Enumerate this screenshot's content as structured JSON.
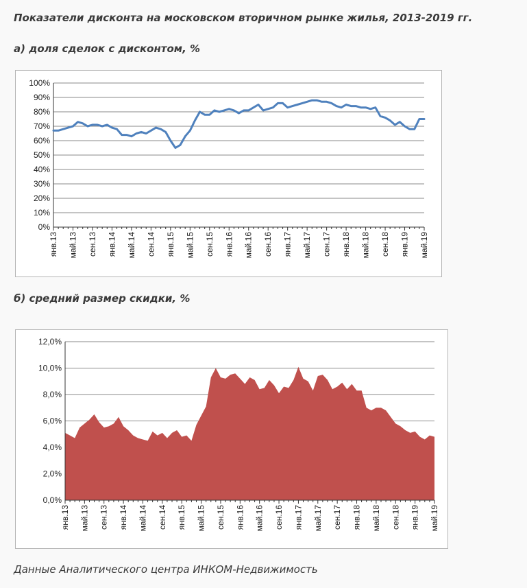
{
  "page": {
    "title": "Показатели дисконта на московском вторичном рынке жилья, 2013-2019 гг.",
    "source": "Данные Аналитического центра ИНКОМ-Недвижимость"
  },
  "chart_data": [
    {
      "type": "line",
      "title": "а) доля сделок с дисконтом, %",
      "xlabel": "",
      "ylabel": "",
      "ylim": [
        0,
        100
      ],
      "y_ticks": [
        "0%",
        "10%",
        "20%",
        "30%",
        "40%",
        "50%",
        "60%",
        "70%",
        "80%",
        "90%",
        "100%"
      ],
      "x_tick_labels": [
        "янв.13",
        "май.13",
        "сен.13",
        "янв.14",
        "май.14",
        "сен.14",
        "янв.15",
        "май.15",
        "сен.15",
        "янв.16",
        "май.16",
        "сен.16",
        "янв.17",
        "май.17",
        "сен.17",
        "янв.18",
        "май.18",
        "сен.18",
        "янв.19",
        "май.19"
      ],
      "grid": "horizontal",
      "legend": "none",
      "color": "#4f81bd",
      "series": [
        {
          "values": [
            67,
            67,
            68,
            69,
            70,
            73,
            72,
            70,
            71,
            71,
            70,
            71,
            69,
            68,
            64,
            64,
            63,
            65,
            66,
            65,
            67,
            69,
            68,
            66,
            60,
            55,
            57,
            63,
            67,
            74,
            80,
            78,
            78,
            81,
            80,
            81,
            82,
            81,
            79,
            81,
            81,
            83,
            85,
            81,
            82,
            83,
            86,
            86,
            83,
            84,
            85,
            86,
            87,
            88,
            88,
            87,
            87,
            86,
            84,
            83,
            85,
            84,
            84,
            83,
            83,
            82,
            83,
            77,
            76,
            74,
            71,
            73,
            70,
            68,
            68,
            75,
            75
          ]
        }
      ]
    },
    {
      "type": "area",
      "title": "б) средний размер скидки, %",
      "xlabel": "",
      "ylabel": "",
      "ylim": [
        0,
        12
      ],
      "y_ticks": [
        "0,0%",
        "2,0%",
        "4,0%",
        "6,0%",
        "8,0%",
        "10,0%",
        "12,0%"
      ],
      "x_tick_labels": [
        "янв.13",
        "май.13",
        "сен.13",
        "янв.14",
        "май.14",
        "сен.14",
        "янв.15",
        "май.15",
        "сен.15",
        "янв.16",
        "май.16",
        "сен.16",
        "янв.17",
        "май.17",
        "сен.17",
        "янв.18",
        "май.18",
        "сен.18",
        "янв.19",
        "май.19"
      ],
      "grid": "horizontal",
      "legend": "none",
      "color": "#c0504d",
      "series": [
        {
          "values": [
            5.1,
            4.9,
            4.7,
            5.5,
            5.8,
            6.1,
            6.5,
            5.9,
            5.5,
            5.6,
            5.8,
            6.3,
            5.6,
            5.3,
            4.9,
            4.7,
            4.6,
            4.5,
            5.2,
            4.9,
            5.1,
            4.7,
            5.1,
            5.3,
            4.8,
            4.9,
            4.5,
            5.7,
            6.4,
            7.1,
            9.3,
            10.0,
            9.3,
            9.2,
            9.5,
            9.6,
            9.2,
            8.8,
            9.3,
            9.1,
            8.4,
            8.5,
            9.1,
            8.7,
            8.1,
            8.6,
            8.5,
            9.1,
            10.1,
            9.2,
            9.0,
            8.3,
            9.4,
            9.5,
            9.1,
            8.4,
            8.6,
            8.9,
            8.4,
            8.8,
            8.3,
            8.3,
            7.0,
            6.8,
            7.0,
            7.0,
            6.8,
            6.3,
            5.8,
            5.6,
            5.3,
            5.1,
            5.2,
            4.8,
            4.6,
            4.9,
            4.8
          ]
        }
      ]
    }
  ]
}
